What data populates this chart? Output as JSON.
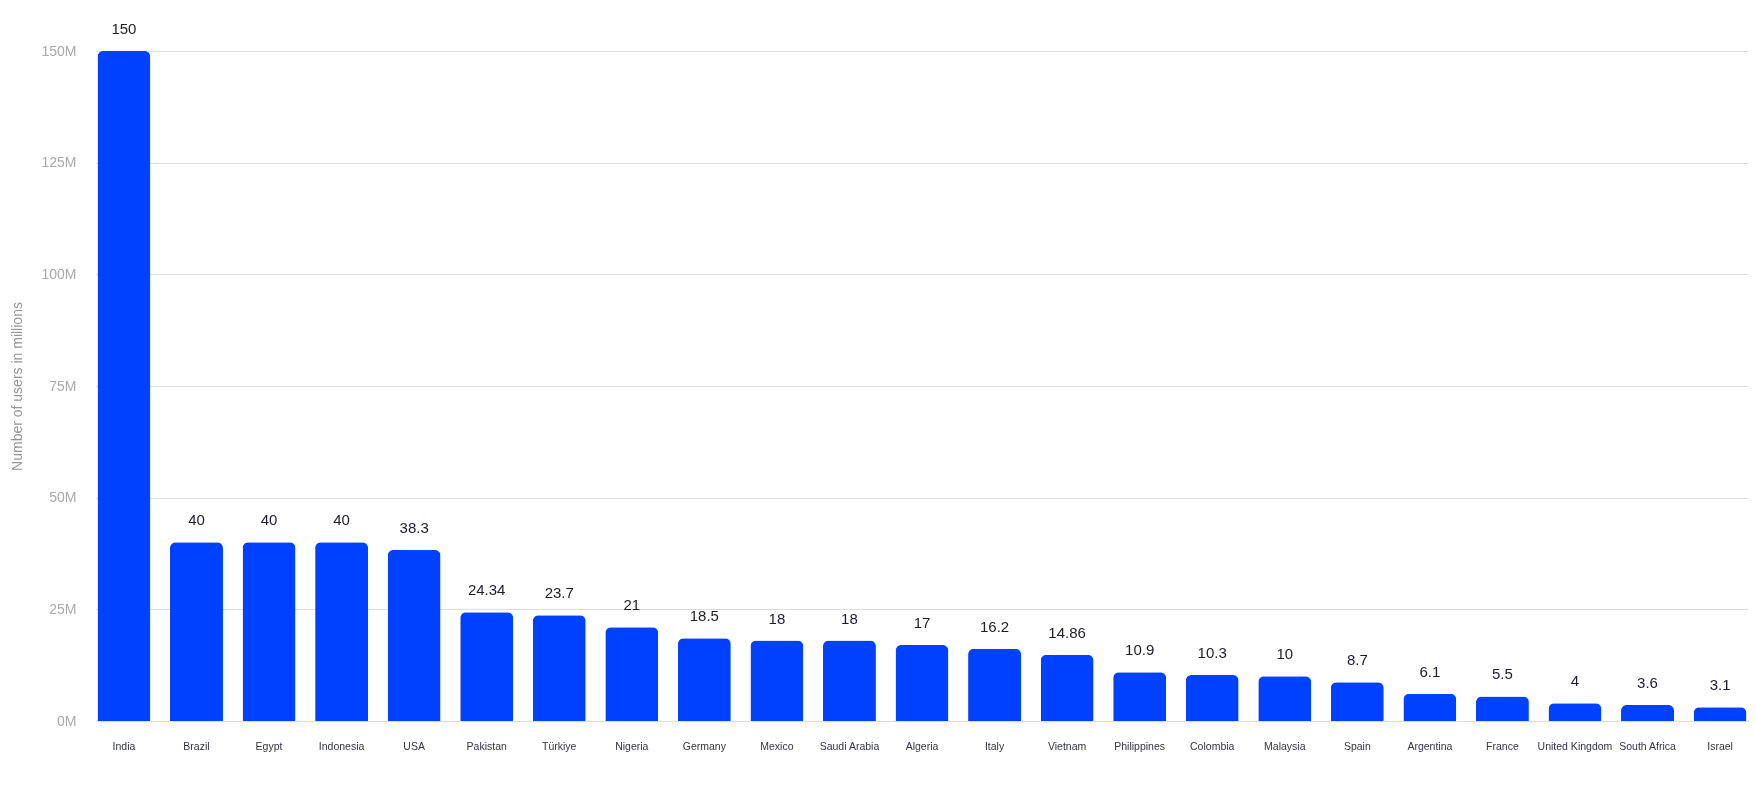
{
  "chart_data": {
    "type": "bar",
    "ylabel": "Number of users in millions",
    "categories": [
      "India",
      "Brazil",
      "Egypt",
      "Indonesia",
      "USA",
      "Pakistan",
      "Türkiye",
      "Nigeria",
      "Germany",
      "Mexico",
      "Saudi Arabia",
      "Algeria",
      "Italy",
      "Vietnam",
      "Philippines",
      "Colombia",
      "Malaysia",
      "Spain",
      "Argentina",
      "France",
      "United Kingdom",
      "South Africa",
      "Israel"
    ],
    "values": [
      150,
      40,
      40,
      40,
      38.3,
      24.34,
      23.7,
      21,
      18.5,
      18,
      18,
      17,
      16.2,
      14.86,
      10.9,
      10.3,
      10,
      8.7,
      6.1,
      5.5,
      4,
      3.6,
      3.1
    ],
    "color": "#0040ff",
    "ylim": [
      0,
      150
    ],
    "yticks": [
      {
        "value": 0,
        "label": "0M"
      },
      {
        "value": 25,
        "label": "25M"
      },
      {
        "value": 50,
        "label": "50M"
      },
      {
        "value": 75,
        "label": "75M"
      },
      {
        "value": 100,
        "label": "100M"
      },
      {
        "value": 125,
        "label": "125M"
      },
      {
        "value": 150,
        "label": "150M"
      }
    ],
    "grid": "y",
    "data_labels": true
  }
}
